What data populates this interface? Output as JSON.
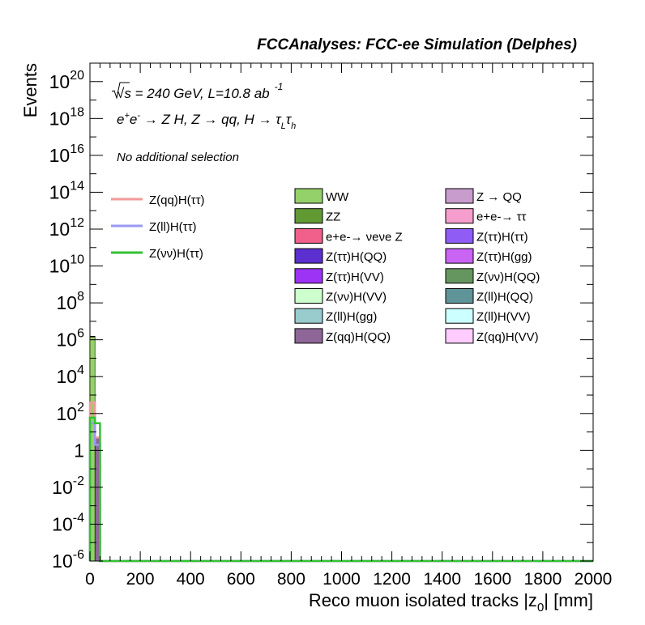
{
  "header": {
    "title": "FCCAnalyses: FCC-ee Simulation (Delphes)"
  },
  "annotations": {
    "energy_sqrt": "√s",
    "energy_rest": " = 240 GeV, L=10.8 ab",
    "energy_exp": "-1",
    "process_a": "e",
    "process_sup1": "+",
    "process_b": "e",
    "process_sup2": "-",
    "process_c": " → Z H, Z  → qq, H  → τ",
    "process_sub1": "L",
    "process_d": "τ",
    "process_sub2": "h",
    "selection": "No additional selection"
  },
  "chart_data": {
    "type": "bar",
    "xlabel": "Reco muon isolated tracks |z0| [mm]",
    "xlabel_main": "Reco muon isolated tracks |z",
    "xlabel_sub": "0",
    "xlabel_end": "| [mm]",
    "ylabel": "Events",
    "xlim": [
      0,
      2000
    ],
    "ylim": [
      1e-06,
      1e+21
    ],
    "ylog": true,
    "x_ticks": [
      "0",
      "200",
      "400",
      "600",
      "800",
      "1000",
      "1200",
      "1400",
      "1600",
      "1800",
      "2000"
    ],
    "y_ticks": [
      {
        "base": "10",
        "exp": "-6"
      },
      {
        "base": "10",
        "exp": "-4"
      },
      {
        "base": "10",
        "exp": "-2"
      },
      {
        "base": "1",
        "exp": ""
      },
      {
        "base": "10",
        "exp": "2"
      },
      {
        "base": "10",
        "exp": "4"
      },
      {
        "base": "10",
        "exp": "6"
      },
      {
        "base": "10",
        "exp": "8"
      },
      {
        "base": "10",
        "exp": "10"
      },
      {
        "base": "10",
        "exp": "12"
      },
      {
        "base": "10",
        "exp": "14"
      },
      {
        "base": "10",
        "exp": "16"
      },
      {
        "base": "10",
        "exp": "18"
      },
      {
        "base": "10",
        "exp": "20"
      }
    ],
    "bin_width": 20,
    "stack": [
      {
        "name": "WW",
        "color": "#95d16a",
        "bins": [
          {
            "x0": 0,
            "value": 1500000
          }
        ]
      },
      {
        "name": "ZZ",
        "color": "#619a33",
        "bins": [
          {
            "x0": 0,
            "value": 20000
          }
        ]
      },
      {
        "name": "Z(ll)H(QQ)",
        "color": "#5f9499",
        "bins": [
          {
            "x0": 0,
            "value": 5000
          }
        ]
      },
      {
        "name": "Z → QQ",
        "color": "#c89ccc",
        "bins": [
          {
            "x0": 0,
            "value": 1000
          }
        ]
      },
      {
        "name": "e+e-→ ττ",
        "color": "#f59ecd",
        "bins": [
          {
            "x0": 0,
            "value": 200
          }
        ]
      },
      {
        "name": "e+e-→ νeνe Z",
        "color": "#f0608a",
        "bins": [
          {
            "x0": 0,
            "value": 80
          }
        ]
      },
      {
        "name": "Z(ττ)H(QQ)",
        "color": "#5b2fd0",
        "bins": [
          {
            "x0": 0,
            "value": 30
          }
        ]
      },
      {
        "name": "Z(ττ)H(gg)",
        "color": "#c964f5",
        "bins": [
          {
            "x0": 0,
            "value": 15
          }
        ]
      },
      {
        "name": "Z(νν)H(QQ)",
        "color": "#66965f",
        "bins": [
          {
            "x0": 0,
            "value": 8
          }
        ]
      },
      {
        "name": "Z(qq)H(QQ)",
        "color": "#8e6698",
        "bins": [
          {
            "x0": 0,
            "value": 4
          },
          {
            "x0": 20,
            "value": 5
          }
        ]
      }
    ],
    "lines": [
      {
        "name": "Z(qq)H(ττ)",
        "color": "#f29a9a",
        "bins": [
          {
            "x0": 0,
            "value": 400
          },
          {
            "x0": 20,
            "value": 5
          }
        ]
      },
      {
        "name": "Z(ll)H(ττ)",
        "color": "#9a9af2",
        "bins": [
          {
            "x0": 0,
            "value": 30
          },
          {
            "x0": 20,
            "value": 2
          }
        ]
      },
      {
        "name": "Z(νν)H(ττ)",
        "color": "#33c233",
        "bins": [
          {
            "x0": 0,
            "value": 60
          },
          {
            "x0": 20,
            "value": 30
          }
        ]
      }
    ],
    "legend_lines": [
      {
        "label": "Z(qq)H(ττ)",
        "color": "#f29a9a"
      },
      {
        "label": "Z(ll)H(ττ)",
        "color": "#9a9af2"
      },
      {
        "label": "Z(νν)H(ττ)",
        "color": "#33c233"
      }
    ],
    "legend_col1": [
      {
        "label": "WW",
        "color": "#95d16a"
      },
      {
        "label": "ZZ",
        "color": "#619a33"
      },
      {
        "label": "e+e-→ νeνe Z",
        "color": "#f0608a"
      },
      {
        "label": "Z(ττ)H(QQ)",
        "color": "#5b2fd0"
      },
      {
        "label": "Z(ττ)H(VV)",
        "color": "#9d33f5"
      },
      {
        "label": "Z(νν)H(VV)",
        "color": "#ccffcc"
      },
      {
        "label": "Z(ll)H(gg)",
        "color": "#99cccc"
      },
      {
        "label": "Z(qq)H(QQ)",
        "color": "#8e6698"
      }
    ],
    "legend_col2": [
      {
        "label": "Z → QQ",
        "color": "#c89ccc"
      },
      {
        "label": "e+e-→ ττ",
        "color": "#f59ecd"
      },
      {
        "label": "Z(ττ)H(ττ)",
        "color": "#8f5cf5"
      },
      {
        "label": "Z(ττ)H(gg)",
        "color": "#c964f5"
      },
      {
        "label": "Z(νν)H(QQ)",
        "color": "#66965f"
      },
      {
        "label": "Z(ll)H(QQ)",
        "color": "#5f9499"
      },
      {
        "label": "Z(ll)H(VV)",
        "color": "#ccffff"
      },
      {
        "label": "Z(qq)H(VV)",
        "color": "#ffccff"
      }
    ]
  }
}
